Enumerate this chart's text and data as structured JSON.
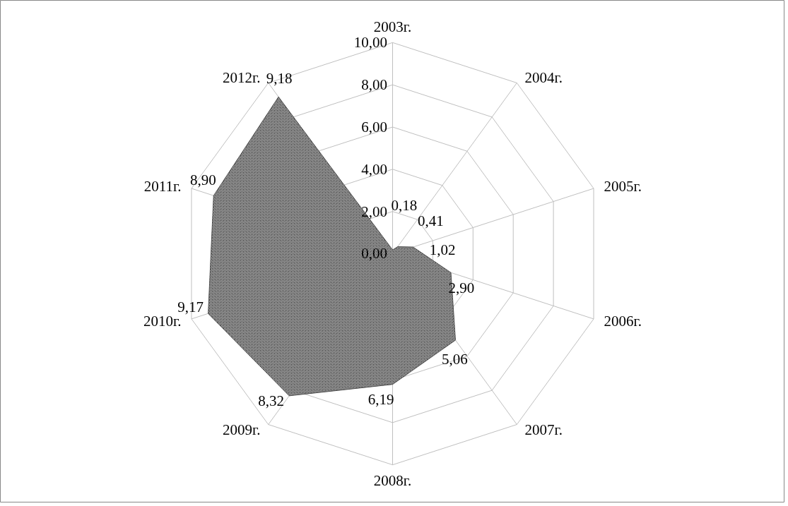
{
  "chart_data": {
    "type": "radar",
    "categories": [
      "2003г.",
      "2004г.",
      "2005г.",
      "2006г.",
      "2007г.",
      "2008г.",
      "2009г.",
      "2010г.",
      "2011г.",
      "2012г."
    ],
    "series": [
      {
        "color": "#4d4d4d",
        "values": [
          0.18,
          0.41,
          1.02,
          2.9,
          5.06,
          6.19,
          8.32,
          9.17,
          8.9,
          9.18
        ],
        "value_labels": [
          "0,18",
          "0,41",
          "1,02",
          "2,90",
          "5,06",
          "6,19",
          "8,32",
          "9,17",
          "8,90",
          "9,18"
        ]
      }
    ],
    "ylim": [
      0,
      10
    ],
    "yticks": [
      {
        "value": 0,
        "label": "0,00"
      },
      {
        "value": 2,
        "label": "2,00"
      },
      {
        "value": 4,
        "label": "4,00"
      },
      {
        "value": 6,
        "label": "6,00"
      },
      {
        "value": 8,
        "label": "8,00"
      },
      {
        "value": 10,
        "label": "10,00"
      }
    ],
    "grid": true
  }
}
